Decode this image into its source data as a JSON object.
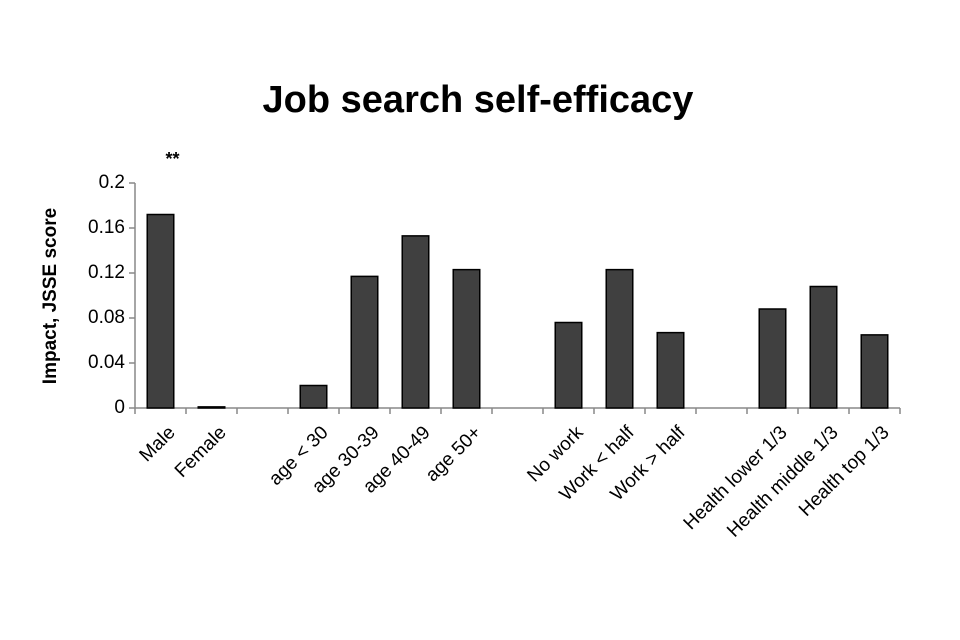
{
  "chart_data": {
    "type": "bar",
    "title": "Job search self-efficacy",
    "y_label": "Impact, JSSE score",
    "annotations": [
      "**"
    ],
    "categories": [
      "Male",
      "Female",
      null,
      "age < 30",
      "age 30-39",
      "age 40-49",
      "age 50+",
      null,
      "No work",
      "Work < half",
      "Work > half",
      null,
      "Health lower 1/3",
      "Health middle 1/3",
      "Health top 1/3"
    ],
    "values": [
      0.172,
      0.001,
      null,
      0.02,
      0.117,
      0.153,
      0.123,
      null,
      0.076,
      0.123,
      0.067,
      null,
      0.088,
      0.108,
      0.065
    ],
    "color": "#404040",
    "ylim": [
      0,
      0.2
    ],
    "yticks": [
      0,
      0.04,
      0.08,
      0.12,
      0.16,
      0.2
    ],
    "grid": false
  }
}
